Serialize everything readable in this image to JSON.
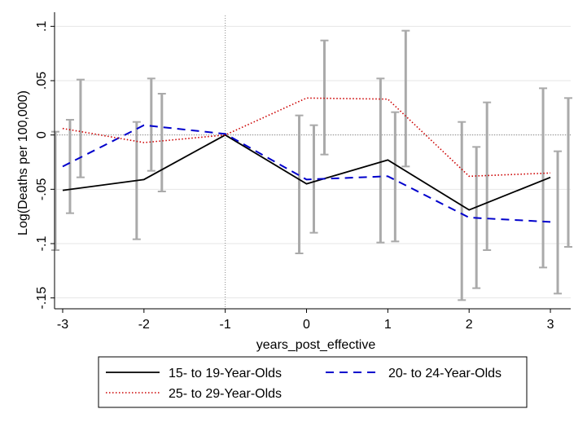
{
  "chart_data": {
    "type": "line",
    "xlabel": "years_post_effective",
    "ylabel": "Log(Deaths per 100,000)",
    "x": [
      -3,
      -2,
      -1,
      0,
      1,
      2,
      3
    ],
    "x_tick_labels": [
      "-3",
      "-2",
      "-1",
      "0",
      "1",
      "2",
      "3"
    ],
    "y_ticks": [
      -0.15,
      -0.1,
      -0.05,
      0,
      0.05,
      0.1
    ],
    "y_tick_labels": [
      "-.15",
      "-.1",
      "-.05",
      "0",
      ".05",
      ".1"
    ],
    "xlim": [
      -3.1,
      3.25
    ],
    "ylim": [
      -0.16,
      0.11
    ],
    "grid": true,
    "reference_lines": {
      "x": -1,
      "y": 0
    },
    "legend_position": "bottom",
    "series": [
      {
        "name": "15- to 19-Year-Olds",
        "color": "#000000",
        "style": "solid",
        "x_offset": -0.09,
        "values": [
          -0.051,
          -0.041,
          0.0,
          -0.045,
          -0.023,
          -0.069,
          -0.039
        ],
        "ci_lower": [
          -0.106,
          -0.096,
          null,
          -0.109,
          -0.099,
          -0.152,
          -0.122
        ],
        "ci_upper": [
          0.003,
          0.012,
          null,
          0.018,
          0.052,
          0.012,
          0.043
        ]
      },
      {
        "name": "20- to 24-Year-Olds",
        "color": "#0000cc",
        "style": "dashed",
        "x_offset": 0.09,
        "values": [
          -0.029,
          0.009,
          0.001,
          -0.041,
          -0.038,
          -0.076,
          -0.08
        ],
        "ci_lower": [
          -0.072,
          -0.033,
          null,
          -0.09,
          -0.098,
          -0.141,
          -0.146
        ],
        "ci_upper": [
          0.014,
          0.052,
          null,
          0.009,
          0.021,
          -0.011,
          -0.015
        ]
      },
      {
        "name": "25- to 29-Year-Olds",
        "color": "#cc0000",
        "style": "dotted",
        "x_offset": 0.22,
        "values": [
          0.006,
          -0.007,
          0.0,
          0.034,
          0.033,
          -0.038,
          -0.035
        ],
        "ci_lower": [
          -0.039,
          -0.052,
          null,
          -0.018,
          -0.029,
          -0.106,
          -0.103
        ],
        "ci_upper": [
          0.051,
          0.038,
          null,
          0.087,
          0.096,
          0.03,
          0.034
        ]
      }
    ]
  }
}
